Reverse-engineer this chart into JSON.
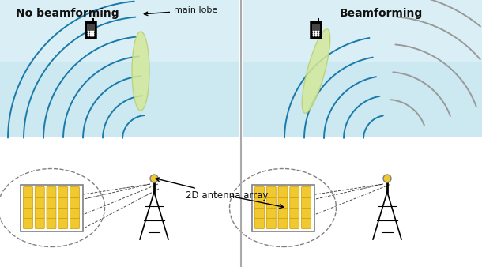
{
  "bg_top_color": "#cce8f0",
  "bg_top_color2": "#e8f6fb",
  "bg_bottom_color": "#ffffff",
  "wave_color_blue": "#1a7aaa",
  "wave_color_gray": "#999999",
  "lobe_color": "#d4e89a",
  "lobe_edge_color": "#b8d070",
  "divider_color": "#aaaaaa",
  "text_color": "#111111",
  "antenna_box_color": "#f0c830",
  "antenna_box_border": "#888888",
  "title_left": "No beamforming",
  "title_right": "Beamforming",
  "label_main_lobe": "main lobe",
  "label_antenna": "2D antenna array",
  "fig_width": 6.1,
  "fig_height": 3.38,
  "dpi": 100
}
